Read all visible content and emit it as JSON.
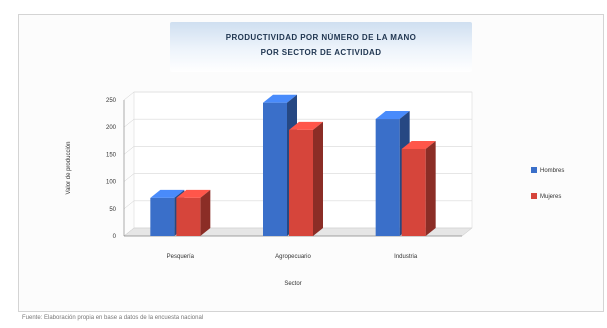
{
  "chart_data": {
    "type": "bar",
    "title": "PRODUCTIVIDAD POR NÚMERO DE LA MANO",
    "subtitle": "POR SECTOR DE ACTIVIDAD",
    "xlabel": "Sector",
    "ylabel": "Valor de producción",
    "categories": [
      "Pesquería",
      "Agropecuario",
      "Industria"
    ],
    "series": [
      {
        "name": "Hombres",
        "color": "#3a6fc9",
        "values": [
          70,
          245,
          215
        ]
      },
      {
        "name": "Mujeres",
        "color": "#d6453b",
        "values": [
          70,
          195,
          160
        ]
      }
    ],
    "yticks": [
      "0",
      "50",
      "100",
      "150",
      "200",
      "250"
    ],
    "ylim": [
      0,
      250
    ],
    "grid": true,
    "legend_position": "right"
  },
  "note": "Fuente: Elaboración propia en base a datos de la encuesta nacional"
}
